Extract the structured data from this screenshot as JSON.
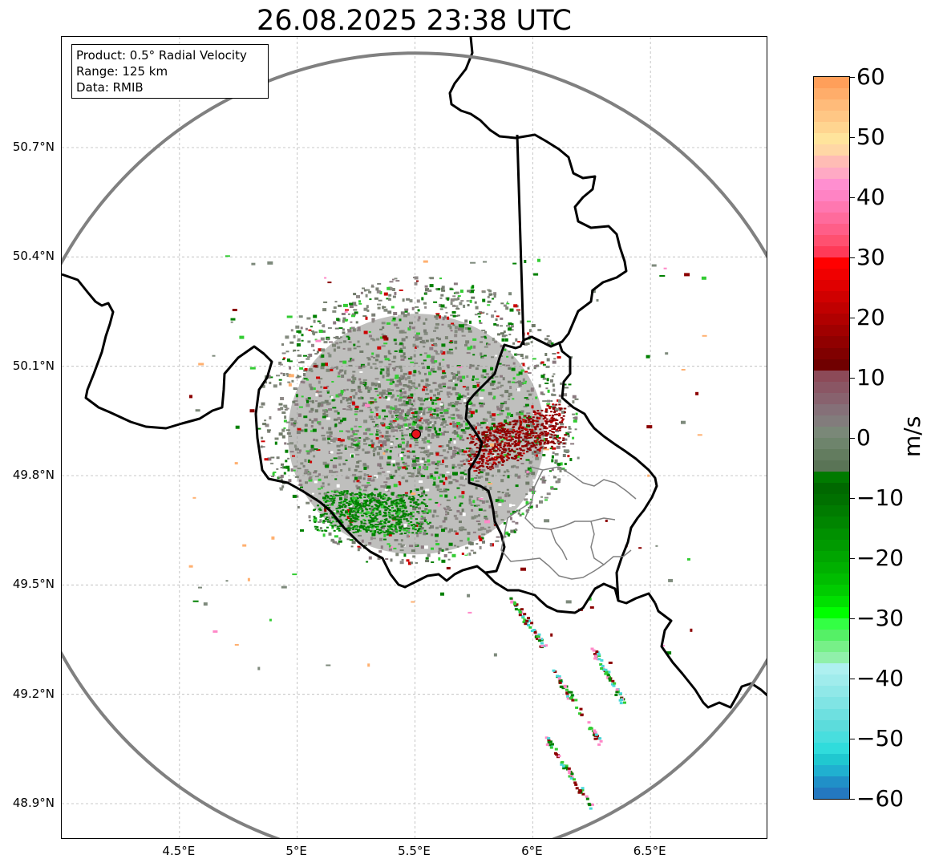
{
  "title": "26.08.2025 23:38 UTC",
  "info": {
    "product": "Product: 0.5° Radial Velocity",
    "range": "Range: 125 km",
    "data": "Data: RMIB"
  },
  "map": {
    "radar_site": {
      "lat": 49.914,
      "lon": 5.505,
      "marker_color": "#e8111b"
    },
    "range_ring_km": 125,
    "range_ring_color": "#808080",
    "lat_range": [
      48.8,
      50.98
    ],
    "lon_range": [
      4.0,
      7.0
    ],
    "lat_ticks": [
      {
        "value": 50.7,
        "label": "50.7°N"
      },
      {
        "value": 50.4,
        "label": "50.4°N"
      },
      {
        "value": 50.1,
        "label": "50.1°N"
      },
      {
        "value": 49.8,
        "label": "49.8°N"
      },
      {
        "value": 49.5,
        "label": "49.5°N"
      },
      {
        "value": 49.2,
        "label": "49.2°N"
      },
      {
        "value": 48.9,
        "label": "48.9°N"
      }
    ],
    "lon_ticks": [
      {
        "value": 4.5,
        "label": "4.5°E"
      },
      {
        "value": 5.0,
        "label": "5°E"
      },
      {
        "value": 5.5,
        "label": "5.5°E"
      },
      {
        "value": 6.0,
        "label": "6°E"
      },
      {
        "value": 6.5,
        "label": "6.5°E"
      }
    ],
    "grid": true,
    "border_color": "#000000",
    "inner_border_color": "#808080"
  },
  "colorbar": {
    "unit": "m/s",
    "min": -60,
    "max": 60,
    "ticks": [
      {
        "value": 60,
        "label": "60"
      },
      {
        "value": 50,
        "label": "50"
      },
      {
        "value": 40,
        "label": "40"
      },
      {
        "value": 30,
        "label": "30"
      },
      {
        "value": 20,
        "label": "20"
      },
      {
        "value": 10,
        "label": "10"
      },
      {
        "value": 0,
        "label": "0"
      },
      {
        "value": -10,
        "label": "−10"
      },
      {
        "value": -20,
        "label": "−20"
      },
      {
        "value": -30,
        "label": "−30"
      },
      {
        "value": -40,
        "label": "−40"
      },
      {
        "value": -50,
        "label": "−50"
      },
      {
        "value": -60,
        "label": "−60"
      }
    ],
    "colors_top_to_bottom": [
      "#ff9f5a",
      "#ffad6a",
      "#ffbb7a",
      "#ffc785",
      "#ffd590",
      "#ffe49c",
      "#ffd7a5",
      "#ffbcb5",
      "#ffa9c4",
      "#ff8fd0",
      "#ff83c4",
      "#ff77b0",
      "#ff6b9c",
      "#ff5e88",
      "#ff5070",
      "#ff3a58",
      "#ff0000",
      "#f00000",
      "#e00000",
      "#d00000",
      "#c00000",
      "#b00000",
      "#a00000",
      "#900000",
      "#800000",
      "#700000",
      "#8c4a58",
      "#8a5664",
      "#88626e",
      "#857078",
      "#827c7c",
      "#7a8878",
      "#6e846c",
      "#637c5f",
      "#5a7456",
      "#007a00",
      "#006800",
      "#007000",
      "#007b00",
      "#008500",
      "#009000",
      "#009a00",
      "#00a500",
      "#00b000",
      "#00bd00",
      "#00cc00",
      "#00e000",
      "#00ff00",
      "#33ff44",
      "#55f066",
      "#77f088",
      "#90f0aa",
      "#aef0f0",
      "#a0ecec",
      "#90e8e8",
      "#80e4e4",
      "#6ee0e0",
      "#5cdcdc",
      "#48dede",
      "#30dcdc",
      "#20c8d0",
      "#20b0d0",
      "#2090c8",
      "#2478c0"
    ],
    "series_colors": {
      "outbound_strong": "#8b0000",
      "outbound": "#cc0000",
      "near_zero": "#7e8a7c",
      "inbound": "#008000",
      "inbound_light": "#33cc33",
      "inbound_strong": "#48d8d8",
      "pink": "#ff88c8",
      "orange": "#ffb070"
    }
  }
}
